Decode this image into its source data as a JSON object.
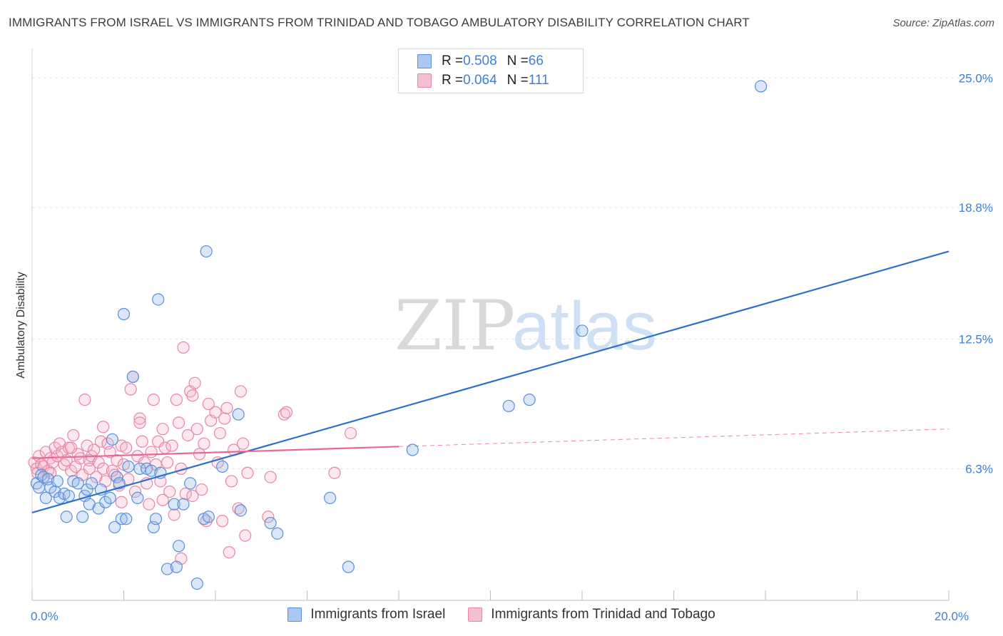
{
  "header": {
    "title": "IMMIGRANTS FROM ISRAEL VS IMMIGRANTS FROM TRINIDAD AND TOBAGO AMBULATORY DISABILITY CORRELATION CHART",
    "source": "Source: ZipAtlas.com"
  },
  "watermark": {
    "zip": "ZIP",
    "atlas": "atlas"
  },
  "legend": {
    "rows": [
      {
        "r_label": "R = ",
        "r_value": "0.508",
        "n_label": "N = ",
        "n_value": "66",
        "fill": "#aac8f0",
        "stroke": "#5b8fd9"
      },
      {
        "r_label": "R = ",
        "r_value": "0.064",
        "n_label": "N = ",
        "n_value": "111",
        "fill": "#f6bfd0",
        "stroke": "#e886a6"
      }
    ]
  },
  "bottom_legend": {
    "israel": "Immigrants from Israel",
    "trinidad": "Immigrants from Trinidad and Tobago"
  },
  "colors": {
    "israel_stroke": "#5b8fd9",
    "israel_fill": "rgba(150,185,235,0.35)",
    "israel_line": "#2f6fcc",
    "trinidad_stroke": "#e886a6",
    "trinidad_fill": "rgba(246,180,200,0.30)",
    "trinidad_line": "#e86a94",
    "tick_text": "#3f7fd6",
    "grid": "#e3e3e3"
  },
  "chart_data": {
    "type": "scatter",
    "title": "IMMIGRANTS FROM ISRAEL VS IMMIGRANTS FROM TRINIDAD AND TOBAGO AMBULATORY DISABILITY CORRELATION CHART",
    "xlabel": "",
    "ylabel": "Ambulatory Disability",
    "xlim": [
      0,
      20
    ],
    "ylim": [
      0,
      26
    ],
    "x_ticks": [
      "0.0%",
      "20.0%"
    ],
    "x_tick_values": [
      0,
      20
    ],
    "y_ticks": [
      "6.3%",
      "12.5%",
      "18.8%",
      "25.0%"
    ],
    "y_tick_values": [
      6.3,
      12.5,
      18.8,
      25.0
    ],
    "grid": true,
    "legend_position": "top-center",
    "series": [
      {
        "name": "Immigrants from Israel",
        "trend": {
          "x": [
            0,
            20
          ],
          "y": [
            4.2,
            16.7
          ],
          "dashed_from": null
        },
        "points": [
          [
            0.1,
            5.6
          ],
          [
            0.15,
            5.4
          ],
          [
            0.2,
            6.0
          ],
          [
            0.25,
            5.9
          ],
          [
            0.3,
            4.9
          ],
          [
            0.35,
            5.8
          ],
          [
            0.4,
            5.4
          ],
          [
            0.5,
            5.2
          ],
          [
            0.55,
            5.7
          ],
          [
            0.6,
            4.9
          ],
          [
            0.7,
            5.1
          ],
          [
            0.75,
            4.0
          ],
          [
            0.8,
            5.0
          ],
          [
            0.9,
            5.7
          ],
          [
            1.0,
            5.6
          ],
          [
            1.1,
            4.0
          ],
          [
            1.15,
            5.0
          ],
          [
            1.2,
            5.3
          ],
          [
            1.25,
            4.6
          ],
          [
            1.3,
            5.6
          ],
          [
            1.45,
            4.4
          ],
          [
            1.5,
            5.3
          ],
          [
            1.6,
            4.7
          ],
          [
            1.7,
            4.9
          ],
          [
            1.75,
            7.7
          ],
          [
            1.8,
            3.5
          ],
          [
            1.85,
            5.9
          ],
          [
            1.9,
            5.6
          ],
          [
            1.95,
            3.9
          ],
          [
            2.0,
            13.7
          ],
          [
            2.05,
            3.9
          ],
          [
            2.1,
            6.4
          ],
          [
            2.2,
            10.7
          ],
          [
            2.3,
            4.9
          ],
          [
            2.35,
            6.3
          ],
          [
            2.5,
            6.3
          ],
          [
            2.6,
            6.2
          ],
          [
            2.65,
            3.5
          ],
          [
            2.7,
            3.9
          ],
          [
            2.75,
            14.4
          ],
          [
            2.8,
            6.1
          ],
          [
            2.95,
            1.5
          ],
          [
            3.1,
            4.6
          ],
          [
            3.15,
            1.6
          ],
          [
            3.2,
            2.6
          ],
          [
            3.3,
            4.6
          ],
          [
            3.45,
            5.6
          ],
          [
            3.6,
            0.8
          ],
          [
            3.75,
            3.9
          ],
          [
            3.85,
            4.0
          ],
          [
            3.8,
            16.7
          ],
          [
            4.15,
            6.4
          ],
          [
            4.5,
            8.9
          ],
          [
            4.55,
            4.3
          ],
          [
            5.2,
            3.7
          ],
          [
            5.35,
            3.2
          ],
          [
            6.5,
            4.9
          ],
          [
            6.9,
            1.6
          ],
          [
            8.3,
            7.2
          ],
          [
            10.4,
            9.3
          ],
          [
            10.85,
            9.6
          ],
          [
            12.0,
            12.9
          ],
          [
            15.9,
            24.6
          ]
        ]
      },
      {
        "name": "Immigrants from Trinidad and Tobago",
        "trend": {
          "x": [
            0,
            20
          ],
          "y": [
            6.8,
            8.2
          ],
          "dashed_from": 8.0
        },
        "points": [
          [
            0.05,
            6.6
          ],
          [
            0.1,
            6.3
          ],
          [
            0.12,
            6.1
          ],
          [
            0.15,
            6.9
          ],
          [
            0.2,
            6.5
          ],
          [
            0.25,
            6.4
          ],
          [
            0.3,
            7.1
          ],
          [
            0.35,
            6.2
          ],
          [
            0.4,
            6.8
          ],
          [
            0.45,
            6.6
          ],
          [
            0.5,
            7.3
          ],
          [
            0.55,
            6.9
          ],
          [
            0.6,
            7.5
          ],
          [
            0.65,
            7.1
          ],
          [
            0.7,
            6.5
          ],
          [
            0.75,
            6.7
          ],
          [
            0.8,
            7.3
          ],
          [
            0.85,
            6.2
          ],
          [
            0.9,
            7.9
          ],
          [
            0.95,
            6.4
          ],
          [
            1.0,
            7.0
          ],
          [
            1.05,
            6.8
          ],
          [
            1.1,
            6.0
          ],
          [
            1.15,
            9.6
          ],
          [
            1.2,
            7.4
          ],
          [
            1.25,
            6.7
          ],
          [
            1.3,
            6.9
          ],
          [
            1.35,
            7.2
          ],
          [
            1.4,
            5.9
          ],
          [
            1.45,
            6.6
          ],
          [
            1.5,
            7.6
          ],
          [
            1.55,
            6.3
          ],
          [
            1.6,
            5.7
          ],
          [
            1.65,
            7.5
          ],
          [
            1.7,
            7.1
          ],
          [
            1.75,
            6.2
          ],
          [
            1.8,
            6.0
          ],
          [
            1.85,
            6.7
          ],
          [
            1.9,
            5.5
          ],
          [
            1.95,
            7.4
          ],
          [
            2.0,
            6.5
          ],
          [
            2.05,
            7.3
          ],
          [
            2.1,
            5.8
          ],
          [
            2.15,
            10.1
          ],
          [
            2.2,
            10.7
          ],
          [
            2.25,
            5.2
          ],
          [
            2.3,
            6.9
          ],
          [
            2.35,
            8.7
          ],
          [
            2.4,
            7.6
          ],
          [
            2.45,
            6.6
          ],
          [
            2.5,
            5.6
          ],
          [
            2.55,
            4.6
          ],
          [
            2.6,
            7.1
          ],
          [
            2.65,
            9.6
          ],
          [
            2.7,
            6.5
          ],
          [
            2.75,
            7.6
          ],
          [
            2.8,
            5.7
          ],
          [
            2.85,
            8.2
          ],
          [
            2.9,
            7.3
          ],
          [
            2.95,
            6.6
          ],
          [
            3.0,
            5.2
          ],
          [
            3.05,
            7.4
          ],
          [
            3.1,
            4.1
          ],
          [
            3.15,
            9.6
          ],
          [
            3.2,
            8.5
          ],
          [
            3.25,
            2.0
          ],
          [
            3.3,
            12.1
          ],
          [
            3.35,
            5.1
          ],
          [
            3.4,
            7.9
          ],
          [
            3.45,
            10.0
          ],
          [
            3.5,
            9.8
          ],
          [
            3.55,
            10.4
          ],
          [
            3.6,
            8.2
          ],
          [
            3.65,
            7.0
          ],
          [
            3.7,
            5.3
          ],
          [
            3.75,
            7.5
          ],
          [
            3.8,
            3.8
          ],
          [
            3.85,
            9.4
          ],
          [
            3.9,
            8.6
          ],
          [
            4.0,
            9.0
          ],
          [
            4.05,
            6.6
          ],
          [
            4.1,
            8.0
          ],
          [
            4.15,
            3.8
          ],
          [
            4.2,
            8.7
          ],
          [
            4.25,
            9.2
          ],
          [
            4.3,
            2.3
          ],
          [
            4.35,
            5.7
          ],
          [
            4.4,
            7.2
          ],
          [
            4.5,
            4.4
          ],
          [
            4.55,
            10.0
          ],
          [
            4.6,
            7.5
          ],
          [
            4.65,
            3.1
          ],
          [
            4.7,
            6.1
          ],
          [
            5.15,
            4.0
          ],
          [
            5.2,
            5.9
          ],
          [
            5.5,
            8.9
          ],
          [
            5.55,
            9.0
          ],
          [
            6.6,
            6.1
          ],
          [
            6.95,
            8.0
          ],
          [
            2.35,
            8.5
          ],
          [
            1.25,
            6.3
          ],
          [
            0.85,
            7.3
          ],
          [
            3.5,
            5.0
          ],
          [
            1.95,
            4.7
          ],
          [
            0.4,
            6.1
          ],
          [
            2.85,
            4.8
          ],
          [
            1.55,
            8.3
          ],
          [
            3.25,
            6.3
          ]
        ]
      }
    ]
  }
}
